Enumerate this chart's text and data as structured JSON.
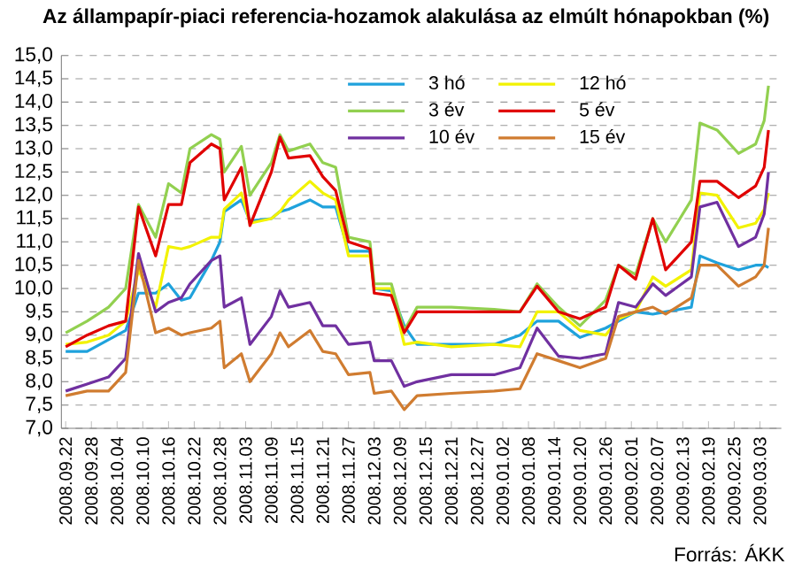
{
  "chart_data": {
    "type": "line",
    "title": "Az állampapír-piaci referencia-hozamok alakulása az elmúlt hónapokban (%)",
    "annotations": [
      "Forrás: ÁKK"
    ],
    "x": [
      "2008-09-22",
      "2008-09-27",
      "2008-10-02",
      "2008-10-06",
      "2008-10-09",
      "2008-10-13",
      "2008-10-16",
      "2008-10-19",
      "2008-10-21",
      "2008-10-26",
      "2008-10-28",
      "2008-10-29",
      "2008-11-02",
      "2008-11-04",
      "2008-11-09",
      "2008-11-11",
      "2008-11-13",
      "2008-11-18",
      "2008-11-21",
      "2008-11-24",
      "2008-11-27",
      "2008-12-02",
      "2008-12-03",
      "2008-12-07",
      "2008-12-10",
      "2008-12-13",
      "2008-12-21",
      "2008-12-31",
      "2009-01-06",
      "2009-01-10",
      "2009-01-15",
      "2009-01-20",
      "2009-01-26",
      "2009-01-29",
      "2009-02-02",
      "2009-02-06",
      "2009-02-09",
      "2009-02-15",
      "2009-02-17",
      "2009-02-21",
      "2009-02-26",
      "2009-03-02",
      "2009-03-04",
      "2009-03-05"
    ],
    "series": [
      {
        "name": "3 hó",
        "color": "#1fa2dc",
        "values": [
          8.65,
          8.65,
          8.9,
          9.1,
          9.9,
          9.9,
          10.1,
          9.75,
          9.8,
          10.6,
          11.0,
          11.65,
          11.9,
          11.45,
          11.5,
          11.65,
          11.7,
          11.9,
          11.75,
          11.75,
          10.8,
          10.8,
          10.0,
          9.95,
          9.2,
          8.8,
          8.8,
          8.8,
          9.0,
          9.3,
          9.3,
          8.95,
          9.15,
          9.3,
          9.5,
          9.45,
          9.5,
          9.6,
          10.7,
          10.55,
          10.4,
          10.5,
          10.5,
          10.45
        ]
      },
      {
        "name": "12 hó",
        "color": "#f2f200",
        "values": [
          8.8,
          8.85,
          9.0,
          9.3,
          10.4,
          9.6,
          10.9,
          10.85,
          10.9,
          11.1,
          11.1,
          11.7,
          12.05,
          11.4,
          11.5,
          11.65,
          11.9,
          12.3,
          12.05,
          11.9,
          10.7,
          10.7,
          10.0,
          10.0,
          8.8,
          8.85,
          8.75,
          8.8,
          8.75,
          9.5,
          9.5,
          9.1,
          9.0,
          9.35,
          9.5,
          10.25,
          10.05,
          10.4,
          12.05,
          12.0,
          11.3,
          11.4,
          11.7,
          12.05
        ]
      },
      {
        "name": "3 év",
        "color": "#92d050",
        "values": [
          9.05,
          9.3,
          9.6,
          10.0,
          11.8,
          11.1,
          12.25,
          12.05,
          13.0,
          13.3,
          13.2,
          12.5,
          13.05,
          12.0,
          12.7,
          13.3,
          12.95,
          13.1,
          12.7,
          12.6,
          11.1,
          11.0,
          10.1,
          10.1,
          9.1,
          9.6,
          9.6,
          9.55,
          9.5,
          10.1,
          9.6,
          9.2,
          9.75,
          10.5,
          10.3,
          11.5,
          11.0,
          11.9,
          13.55,
          13.4,
          12.9,
          13.1,
          13.6,
          14.35
        ]
      },
      {
        "name": "5 év",
        "color": "#e00000",
        "values": [
          8.75,
          9.0,
          9.2,
          9.3,
          11.75,
          10.7,
          11.8,
          11.8,
          12.7,
          13.1,
          13.0,
          11.9,
          12.6,
          11.35,
          12.5,
          13.25,
          12.8,
          12.85,
          12.4,
          12.1,
          11.0,
          10.85,
          9.9,
          9.85,
          9.05,
          9.5,
          9.5,
          9.5,
          9.5,
          10.05,
          9.5,
          9.35,
          9.6,
          10.5,
          10.2,
          11.5,
          10.4,
          11.0,
          12.3,
          12.3,
          11.95,
          12.2,
          12.6,
          13.4
        ]
      },
      {
        "name": "10 év",
        "color": "#7030a0",
        "values": [
          7.8,
          7.95,
          8.1,
          8.5,
          10.75,
          9.5,
          9.7,
          9.8,
          10.1,
          10.6,
          10.7,
          9.6,
          9.8,
          8.8,
          9.4,
          9.95,
          9.6,
          9.7,
          9.2,
          9.2,
          8.8,
          8.85,
          8.45,
          8.45,
          7.9,
          8.0,
          8.15,
          8.15,
          8.3,
          9.15,
          8.55,
          8.5,
          8.6,
          9.7,
          9.6,
          10.1,
          9.85,
          10.25,
          11.75,
          11.85,
          10.9,
          11.1,
          11.6,
          12.5
        ]
      },
      {
        "name": "15 év",
        "color": "#d07c30",
        "values": [
          7.7,
          7.8,
          7.8,
          8.2,
          10.6,
          9.05,
          9.15,
          9.0,
          9.05,
          9.15,
          9.3,
          8.3,
          8.6,
          8.0,
          8.6,
          9.05,
          8.75,
          9.1,
          8.65,
          8.6,
          8.15,
          8.2,
          7.75,
          7.8,
          7.4,
          7.7,
          7.75,
          7.8,
          7.85,
          8.6,
          8.45,
          8.3,
          8.5,
          9.4,
          9.5,
          9.6,
          9.45,
          9.8,
          10.5,
          10.5,
          10.05,
          10.25,
          10.5,
          11.3
        ]
      }
    ],
    "xlim": [
      "2008-09-21",
      "2009-03-08"
    ],
    "xticks": [
      {
        "value": "2008-09-22",
        "label": "2008.09.22"
      },
      {
        "value": "2008-09-28",
        "label": "2008.09.28"
      },
      {
        "value": "2008-10-04",
        "label": "2008.10.04"
      },
      {
        "value": "2008-10-10",
        "label": "2008.10.10"
      },
      {
        "value": "2008-10-16",
        "label": "2008.10.16"
      },
      {
        "value": "2008-10-22",
        "label": "2008.10.22"
      },
      {
        "value": "2008-10-28",
        "label": "2008.10.28"
      },
      {
        "value": "2008-11-03",
        "label": "2008.11.03"
      },
      {
        "value": "2008-11-09",
        "label": "2008.11.09"
      },
      {
        "value": "2008-11-15",
        "label": "2008.11.15"
      },
      {
        "value": "2008-11-21",
        "label": "2008.11.21"
      },
      {
        "value": "2008-11-27",
        "label": "2008.11.27"
      },
      {
        "value": "2008-12-03",
        "label": "2008.12.03"
      },
      {
        "value": "2008-12-09",
        "label": "2008.12.09"
      },
      {
        "value": "2008-12-15",
        "label": "2008.12.15"
      },
      {
        "value": "2008-12-21",
        "label": "2008.12.21"
      },
      {
        "value": "2008-12-27",
        "label": "2008.12.27"
      },
      {
        "value": "2009-01-02",
        "label": "2009.01.02"
      },
      {
        "value": "2009-01-08",
        "label": "2009.01.08"
      },
      {
        "value": "2009-01-14",
        "label": "2009.01.14"
      },
      {
        "value": "2009-01-20",
        "label": "2009.01.20"
      },
      {
        "value": "2009-01-26",
        "label": "2009.01.26"
      },
      {
        "value": "2009-02-01",
        "label": "2009.02.01"
      },
      {
        "value": "2009-02-07",
        "label": "2009.02.07"
      },
      {
        "value": "2009-02-13",
        "label": "2009.02.13"
      },
      {
        "value": "2009-02-19",
        "label": "2009.02.19"
      },
      {
        "value": "2009-02-25",
        "label": "2009.02.25"
      },
      {
        "value": "2009-03-03",
        "label": "2009.03.03"
      }
    ],
    "ylim": [
      7,
      15
    ],
    "yticks": [
      {
        "value": 7,
        "label": "7,0"
      },
      {
        "value": 7.5,
        "label": "7,5"
      },
      {
        "value": 8,
        "label": "8,0"
      },
      {
        "value": 8.5,
        "label": "8,5"
      },
      {
        "value": 9,
        "label": "9,0"
      },
      {
        "value": 9.5,
        "label": "9,5"
      },
      {
        "value": 10,
        "label": "10,0"
      },
      {
        "value": 10.5,
        "label": "10,5"
      },
      {
        "value": 11,
        "label": "11,0"
      },
      {
        "value": 11.5,
        "label": "11,5"
      },
      {
        "value": 12,
        "label": "12,0"
      },
      {
        "value": 12.5,
        "label": "12,5"
      },
      {
        "value": 13,
        "label": "13,0"
      },
      {
        "value": 13.5,
        "label": "13,5"
      },
      {
        "value": 14,
        "label": "14,0"
      },
      {
        "value": 14.5,
        "label": "14,5"
      },
      {
        "value": 15,
        "label": "15,0"
      }
    ],
    "grid": "y",
    "legend": "top right",
    "marker": "none",
    "line_style": "solid"
  }
}
